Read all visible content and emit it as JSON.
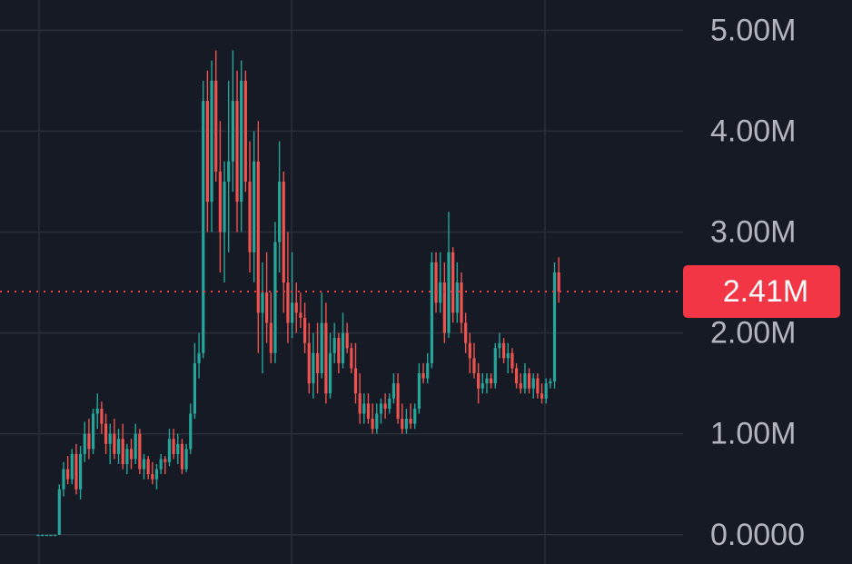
{
  "chart_data": {
    "type": "candlestick",
    "y_tick_labels": [
      "5.00M",
      "4.00M",
      "3.00M",
      "2.00M",
      "1.00M",
      "0.0000"
    ],
    "y_ticks": [
      5000000,
      4000000,
      3000000,
      2000000,
      1000000,
      0
    ],
    "ylim": [
      -290000,
      5300000
    ],
    "grid": true,
    "current_price": 2410000,
    "current_price_label": "2.41M",
    "colors": {
      "background": "#161a25",
      "grid": "#2a2e39",
      "up": "#26a69a",
      "down": "#ef5350",
      "price_label_bg": "#f23645",
      "tick_text": "#b2b5be"
    },
    "candles": [
      [
        0,
        0,
        0,
        0
      ],
      [
        0,
        0,
        0,
        0
      ],
      [
        0,
        0,
        0,
        0
      ],
      [
        0,
        0,
        0,
        0
      ],
      [
        0,
        0,
        0,
        0
      ],
      [
        0,
        0.5,
        0,
        0.45
      ],
      [
        0.45,
        0.72,
        0.38,
        0.65
      ],
      [
        0.65,
        0.78,
        0.5,
        0.55
      ],
      [
        0.55,
        0.85,
        0.5,
        0.8
      ],
      [
        0.8,
        0.9,
        0.4,
        0.45
      ],
      [
        0.45,
        0.88,
        0.35,
        0.8
      ],
      [
        0.8,
        1.12,
        0.72,
        1.0
      ],
      [
        1.0,
        1.15,
        0.75,
        0.85
      ],
      [
        0.85,
        1.25,
        0.8,
        1.2
      ],
      [
        1.2,
        1.4,
        1.05,
        1.25
      ],
      [
        1.25,
        1.32,
        1.0,
        1.1
      ],
      [
        1.1,
        1.2,
        0.8,
        0.9
      ],
      [
        0.9,
        1.1,
        0.7,
        1.0
      ],
      [
        1.0,
        1.15,
        0.75,
        0.8
      ],
      [
        0.8,
        1.05,
        0.7,
        0.95
      ],
      [
        0.95,
        1.1,
        0.65,
        0.7
      ],
      [
        0.7,
        0.9,
        0.6,
        0.85
      ],
      [
        0.85,
        0.95,
        0.65,
        0.75
      ],
      [
        0.75,
        1.1,
        0.7,
        1.0
      ],
      [
        1.0,
        1.05,
        0.6,
        0.65
      ],
      [
        0.65,
        0.8,
        0.55,
        0.75
      ],
      [
        0.75,
        0.78,
        0.55,
        0.6
      ],
      [
        0.6,
        0.72,
        0.5,
        0.55
      ],
      [
        0.55,
        0.7,
        0.45,
        0.65
      ],
      [
        0.65,
        0.8,
        0.6,
        0.75
      ],
      [
        0.75,
        0.78,
        0.6,
        0.72
      ],
      [
        0.72,
        1.05,
        0.68,
        0.95
      ],
      [
        0.95,
        1.05,
        0.75,
        0.8
      ],
      [
        0.8,
        1.0,
        0.7,
        0.9
      ],
      [
        0.9,
        0.95,
        0.6,
        0.65
      ],
      [
        0.65,
        0.9,
        0.62,
        0.85
      ],
      [
        0.85,
        1.3,
        0.8,
        1.2
      ],
      [
        1.2,
        1.9,
        1.15,
        1.7
      ],
      [
        1.7,
        2.0,
        1.55,
        1.8
      ],
      [
        1.8,
        4.5,
        1.75,
        4.3
      ],
      [
        4.3,
        4.6,
        3.0,
        3.3
      ],
      [
        3.3,
        4.7,
        3.0,
        4.5
      ],
      [
        4.5,
        4.8,
        3.5,
        3.6
      ],
      [
        3.6,
        4.1,
        2.6,
        3.0
      ],
      [
        3.0,
        3.7,
        2.5,
        3.5
      ],
      [
        3.5,
        4.5,
        2.8,
        3.7
      ],
      [
        3.7,
        4.8,
        3.4,
        4.3
      ],
      [
        4.3,
        4.6,
        3.0,
        3.3
      ],
      [
        3.3,
        4.7,
        3.0,
        4.5
      ],
      [
        4.5,
        4.6,
        3.4,
        3.5
      ],
      [
        3.5,
        3.9,
        2.6,
        2.8
      ],
      [
        2.8,
        4.0,
        2.5,
        3.7
      ],
      [
        3.7,
        4.1,
        1.8,
        2.2
      ],
      [
        2.2,
        2.7,
        1.6,
        2.4
      ],
      [
        2.4,
        2.8,
        1.9,
        2.1
      ],
      [
        2.1,
        2.4,
        1.7,
        1.8
      ],
      [
        1.8,
        3.1,
        1.7,
        2.9
      ],
      [
        2.9,
        3.9,
        2.6,
        3.5
      ],
      [
        3.5,
        3.6,
        2.2,
        2.5
      ],
      [
        2.5,
        3.0,
        1.9,
        2.1
      ],
      [
        2.1,
        2.8,
        1.95,
        2.3
      ],
      [
        2.3,
        2.5,
        2.0,
        2.2
      ],
      [
        2.2,
        2.4,
        2.05,
        2.15
      ],
      [
        2.15,
        2.3,
        1.8,
        1.9
      ],
      [
        1.9,
        2.1,
        1.4,
        1.5
      ],
      [
        1.5,
        2.0,
        1.35,
        1.8
      ],
      [
        1.8,
        2.1,
        1.4,
        1.6
      ],
      [
        1.6,
        2.4,
        1.55,
        2.1
      ],
      [
        2.1,
        2.3,
        1.3,
        1.4
      ],
      [
        1.4,
        2.0,
        1.35,
        1.8
      ],
      [
        1.8,
        2.1,
        1.7,
        1.95
      ],
      [
        1.95,
        2.0,
        1.6,
        1.7
      ],
      [
        1.7,
        2.2,
        1.65,
        2.0
      ],
      [
        2.0,
        2.1,
        1.8,
        1.85
      ],
      [
        1.85,
        1.9,
        1.6,
        1.65
      ],
      [
        1.65,
        1.9,
        1.3,
        1.4
      ],
      [
        1.4,
        1.6,
        1.1,
        1.2
      ],
      [
        1.2,
        1.4,
        1.1,
        1.3
      ],
      [
        1.3,
        1.4,
        1.1,
        1.15
      ],
      [
        1.15,
        1.3,
        1.0,
        1.05
      ],
      [
        1.05,
        1.3,
        1.0,
        1.2
      ],
      [
        1.2,
        1.35,
        1.1,
        1.3
      ],
      [
        1.3,
        1.4,
        1.15,
        1.25
      ],
      [
        1.25,
        1.4,
        1.2,
        1.35
      ],
      [
        1.35,
        1.6,
        1.3,
        1.5
      ],
      [
        1.5,
        1.6,
        1.1,
        1.15
      ],
      [
        1.15,
        1.3,
        1.0,
        1.05
      ],
      [
        1.05,
        1.25,
        1.0,
        1.15
      ],
      [
        1.15,
        1.3,
        1.05,
        1.1
      ],
      [
        1.1,
        1.3,
        1.05,
        1.25
      ],
      [
        1.25,
        1.7,
        1.2,
        1.6
      ],
      [
        1.6,
        1.7,
        1.5,
        1.55
      ],
      [
        1.55,
        1.8,
        1.5,
        1.7
      ],
      [
        1.7,
        2.8,
        1.65,
        2.7
      ],
      [
        2.7,
        2.8,
        2.2,
        2.3
      ],
      [
        2.3,
        2.8,
        2.2,
        2.5
      ],
      [
        2.5,
        2.7,
        1.9,
        2.0
      ],
      [
        2.0,
        3.2,
        1.95,
        2.8
      ],
      [
        2.8,
        2.85,
        2.1,
        2.2
      ],
      [
        2.2,
        2.7,
        2.1,
        2.5
      ],
      [
        2.5,
        2.6,
        2.0,
        2.1
      ],
      [
        2.1,
        2.2,
        1.8,
        1.9
      ],
      [
        1.9,
        2.0,
        1.6,
        1.75
      ],
      [
        1.75,
        1.9,
        1.55,
        1.6
      ],
      [
        1.6,
        1.7,
        1.3,
        1.45
      ],
      [
        1.45,
        1.6,
        1.4,
        1.5
      ],
      [
        1.5,
        1.6,
        1.4,
        1.55
      ],
      [
        1.55,
        1.6,
        1.45,
        1.5
      ],
      [
        1.5,
        1.9,
        1.45,
        1.85
      ],
      [
        1.85,
        2.0,
        1.75,
        1.9
      ],
      [
        1.9,
        1.95,
        1.7,
        1.75
      ],
      [
        1.75,
        1.9,
        1.6,
        1.8
      ],
      [
        1.8,
        1.85,
        1.6,
        1.65
      ],
      [
        1.65,
        1.7,
        1.45,
        1.5
      ],
      [
        1.5,
        1.6,
        1.4,
        1.45
      ],
      [
        1.45,
        1.7,
        1.4,
        1.6
      ],
      [
        1.6,
        1.65,
        1.4,
        1.45
      ],
      [
        1.45,
        1.6,
        1.35,
        1.55
      ],
      [
        1.55,
        1.6,
        1.35,
        1.4
      ],
      [
        1.4,
        1.5,
        1.3,
        1.35
      ],
      [
        1.35,
        1.55,
        1.3,
        1.5
      ],
      [
        1.5,
        1.55,
        1.45,
        1.52
      ],
      [
        1.52,
        2.7,
        1.45,
        2.6
      ],
      [
        2.6,
        2.75,
        2.3,
        2.41
      ]
    ]
  }
}
